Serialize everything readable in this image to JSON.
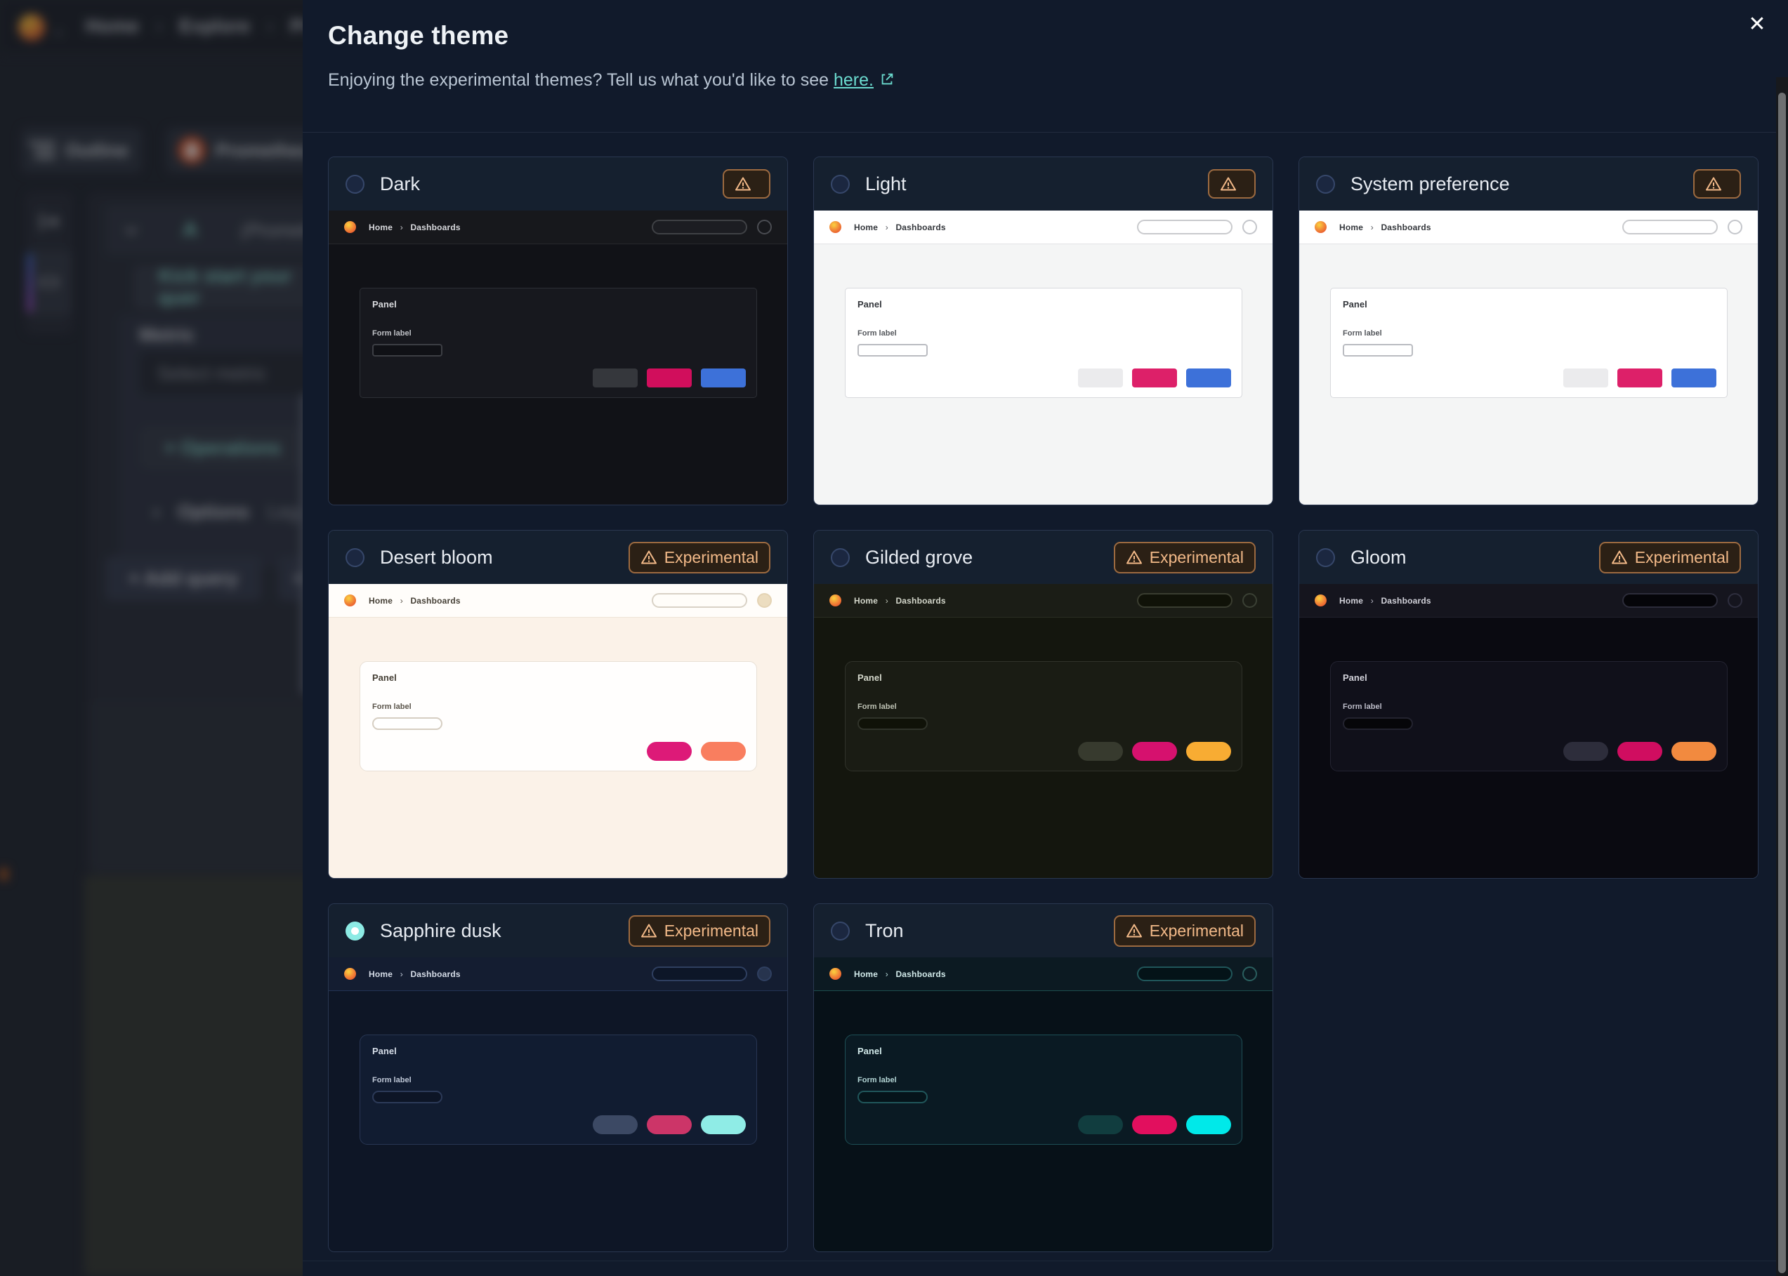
{
  "background": {
    "breadcrumb": {
      "home": "Home",
      "sep": "›",
      "explore": "Explore",
      "trailing": "Pr"
    },
    "toolbar": {
      "outline_label": "Outline",
      "datasource_label": "Prometheu"
    },
    "query_editor": {
      "ref_id": "A",
      "ref_suffix": "(Prometh",
      "kickstart_label": "Kick start your quer",
      "metric_label": "Metric",
      "metric_placeholder": "Select metric",
      "operations_label": "+  Operations",
      "options_chevron": "›",
      "options_label": "Options",
      "options_detail": "Lege",
      "add_query_label": "+  Add query",
      "add_extra_label": "+"
    }
  },
  "modal": {
    "title": "Change theme",
    "subtitle_prefix": "Enjoying the experimental themes? Tell us what you'd like to see ",
    "subtitle_link": "here.",
    "close_glyph": "✕",
    "experimental_label": "Experimental",
    "accent_link_color": "#6bdbcf",
    "preview_labels": {
      "home": "Home",
      "chevron": "›",
      "dashboards": "Dashboards",
      "panel": "Panel",
      "form_label": "Form label"
    },
    "themes": [
      {
        "name": "Dark",
        "experimental": false,
        "selected": false,
        "pill": false,
        "colors": {
          "topbar": "#17181c",
          "topbar_border": "#27282c",
          "body": "#111217",
          "panel": "#17181e",
          "panel_border": "#2d2f35",
          "text": "#d8d9dd",
          "subtext": "#c0c2c7",
          "input_bg": "#101116",
          "input_border": "#3c3e44",
          "search_bg": "#1c1d22",
          "search_border": "#3f4145",
          "avatar_bg": "transparent",
          "avatar_border": "#4a4c52",
          "buttons": [
            "#35373c",
            "#d10e5c",
            "#3d71d9"
          ]
        }
      },
      {
        "name": "Light",
        "experimental": false,
        "selected": false,
        "pill": false,
        "colors": {
          "topbar": "#ffffff",
          "topbar_border": "#e2e3e6",
          "body": "#f4f5f5",
          "panel": "#ffffff",
          "panel_border": "#d8d9dd",
          "text": "#34373c",
          "subtext": "#54575c",
          "input_bg": "#ffffff",
          "input_border": "#babcc1",
          "search_bg": "#ffffff",
          "search_border": "#c9cacd",
          "avatar_bg": "transparent",
          "avatar_border": "#c4c6cb",
          "buttons": [
            "#ebebed",
            "#dd2069",
            "#3d71d9"
          ]
        }
      },
      {
        "name": "System preference",
        "experimental": false,
        "selected": false,
        "pill": false,
        "colors": {
          "topbar": "#ffffff",
          "topbar_border": "#e2e3e6",
          "body": "#f4f5f5",
          "panel": "#ffffff",
          "panel_border": "#d8d9dd",
          "text": "#34373c",
          "subtext": "#54575c",
          "input_bg": "#ffffff",
          "input_border": "#babcc1",
          "search_bg": "#ffffff",
          "search_border": "#c9cacd",
          "avatar_bg": "transparent",
          "avatar_border": "#c4c6cb",
          "buttons": [
            "#ebebed",
            "#dd2069",
            "#3d71d9"
          ]
        }
      },
      {
        "name": "Desert bloom",
        "experimental": true,
        "selected": false,
        "pill": true,
        "colors": {
          "topbar": "#fffdfa",
          "topbar_border": "#eee4d8",
          "body": "#fbf2e8",
          "panel": "#fffefd",
          "panel_border": "#e8e0d5",
          "text": "#453f35",
          "subtext": "#5a544a",
          "input_bg": "#ffffff",
          "input_border": "#d6cec2",
          "search_bg": "#fffdf9",
          "search_border": "#d9d2c6",
          "avatar_bg": "#ecddc0",
          "avatar_border": "#e4d3b4",
          "buttons": [
            "#dd1a78",
            "#f97e5f"
          ]
        }
      },
      {
        "name": "Gilded grove",
        "experimental": true,
        "selected": false,
        "pill": true,
        "colors": {
          "topbar": "#1b1d16",
          "topbar_border": "#2a2d22",
          "body": "#14160e",
          "panel": "#1a1c14",
          "panel_border": "#30322a",
          "text": "#d4d7cb",
          "subtext": "#bfc3b5",
          "input_bg": "#101208",
          "input_border": "#30332a",
          "search_bg": "#101208",
          "search_border": "#3a3d30",
          "avatar_bg": "transparent",
          "avatar_border": "#3a4034",
          "buttons": [
            "#373a2e",
            "#d6116e",
            "#f8ac33"
          ]
        }
      },
      {
        "name": "Gloom",
        "experimental": true,
        "selected": false,
        "pill": true,
        "colors": {
          "topbar": "#15151e",
          "topbar_border": "#20202c",
          "body": "#0a0a11",
          "panel": "#10101a",
          "panel_border": "#232331",
          "text": "#d2d2da",
          "subtext": "#bcbcc8",
          "input_bg": "#060609",
          "input_border": "#23232f",
          "search_bg": "#050509",
          "search_border": "#2c2c3a",
          "avatar_bg": "transparent",
          "avatar_border": "#2e2e3e",
          "buttons": [
            "#2d2d3b",
            "#d00d60",
            "#f28a3f"
          ]
        }
      },
      {
        "name": "Sapphire dusk",
        "experimental": true,
        "selected": true,
        "pill": true,
        "colors": {
          "topbar": "#141d31",
          "topbar_border": "#233354",
          "body": "#0e1626",
          "panel": "#111c31",
          "panel_border": "#283653",
          "text": "#d6dde8",
          "subtext": "#c0c9d8",
          "input_bg": "#0d1526",
          "input_border": "#2c3a58",
          "search_bg": "#0d1628",
          "search_border": "#2f3f60",
          "avatar_bg": "#27344e",
          "avatar_border": "#2f3f60",
          "buttons": [
            "#3c4964",
            "#cc3568",
            "#8fece6"
          ]
        }
      },
      {
        "name": "Tron",
        "experimental": true,
        "selected": false,
        "pill": true,
        "colors": {
          "topbar": "#0c1a22",
          "topbar_border": "#1d4d4d",
          "body": "#071118",
          "panel": "#0a1a23",
          "panel_border": "#1e4f55",
          "text": "#d2eaea",
          "subtext": "#b4d6d6",
          "input_bg": "#05141a",
          "input_border": "#20565a",
          "search_bg": "#041318",
          "search_border": "#20565a",
          "avatar_bg": "transparent",
          "avatar_border": "#2a5f5f",
          "buttons": [
            "#113d3f",
            "#e20f5e",
            "#00e9e9"
          ]
        }
      }
    ]
  }
}
